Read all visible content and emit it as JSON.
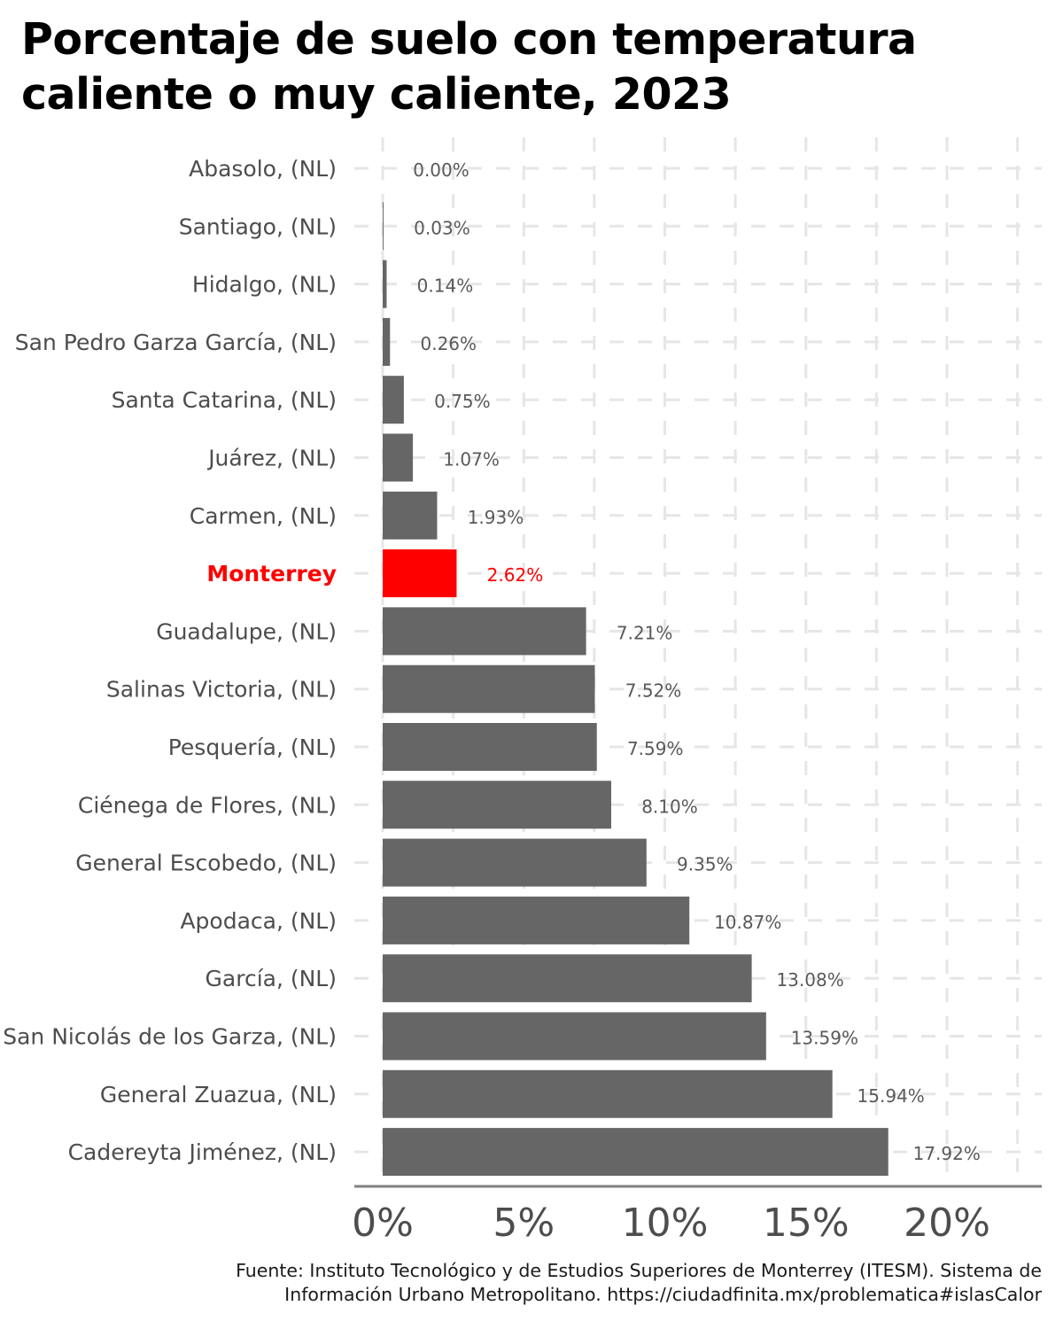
{
  "chart_data": {
    "type": "bar",
    "orientation": "horizontal",
    "title_lines": [
      "Porcentaje de suelo con temperatura",
      "caliente o muy caliente, 2023"
    ],
    "xlabel": "",
    "ylabel": "",
    "xlim": [
      0,
      23
    ],
    "x_ticks": [
      0,
      5,
      10,
      15,
      20
    ],
    "x_tick_labels": [
      "0%",
      "5%",
      "10%",
      "15%",
      "20%"
    ],
    "grid": true,
    "legend": "none",
    "categories": [
      "Abasolo, (NL)",
      "Santiago, (NL)",
      "Hidalgo, (NL)",
      "San Pedro Garza García, (NL)",
      "Santa Catarina, (NL)",
      "Juárez, (NL)",
      "Carmen, (NL)",
      "Monterrey",
      "Guadalupe, (NL)",
      "Salinas Victoria, (NL)",
      "Pesquería, (NL)",
      "Ciénega de Flores, (NL)",
      "General Escobedo, (NL)",
      "Apodaca, (NL)",
      "García, (NL)",
      "San Nicolás de los Garza, (NL)",
      "General Zuazua, (NL)",
      "Cadereyta Jiménez, (NL)"
    ],
    "values": [
      0.0,
      0.03,
      0.14,
      0.26,
      0.75,
      1.07,
      1.93,
      2.62,
      7.21,
      7.52,
      7.59,
      8.1,
      9.35,
      10.87,
      13.08,
      13.59,
      15.94,
      17.92
    ],
    "value_labels": [
      "0.00%",
      "0.03%",
      "0.14%",
      "0.26%",
      "0.75%",
      "1.07%",
      "1.93%",
      "2.62%",
      "7.21%",
      "7.52%",
      "7.59%",
      "8.10%",
      "9.35%",
      "10.87%",
      "13.08%",
      "13.59%",
      "15.94%",
      "17.92%"
    ],
    "highlight": "Monterrey",
    "colors": {
      "bar": "#666666",
      "highlight": "#ff0000",
      "grid": "#e6e6e6",
      "axis": "#808080",
      "label": "#4d4d4d",
      "value_label": "#595959"
    }
  },
  "caption": {
    "line1": "Fuente: Instituto Tecnológico y de Estudios Superiores de Monterrey (ITESM). Sistema de",
    "line2": "Información Urbano Metropolitano. https://ciudadfinita.mx/problematica#islasCalor"
  }
}
